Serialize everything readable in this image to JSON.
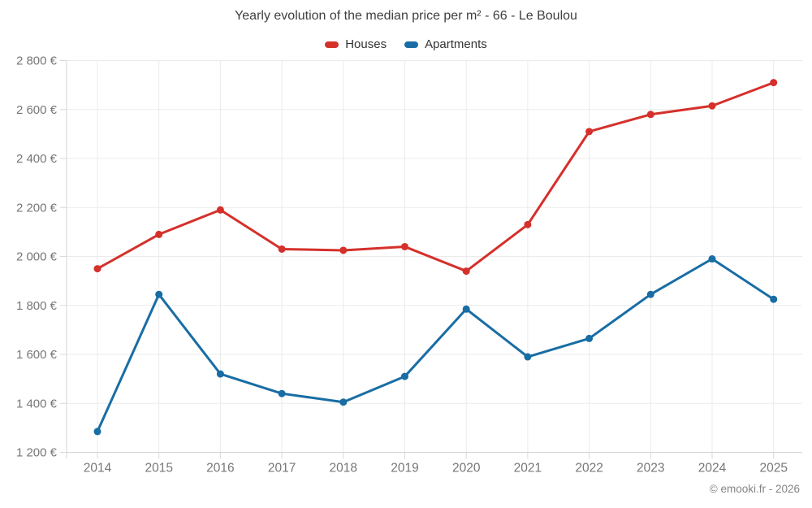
{
  "chart_data": {
    "type": "line",
    "title": "Yearly evolution of the median price per m² - 66 - Le Boulou",
    "categories": [
      "2014",
      "2015",
      "2016",
      "2017",
      "2018",
      "2019",
      "2020",
      "2021",
      "2022",
      "2023",
      "2024",
      "2025"
    ],
    "series": [
      {
        "name": "Houses",
        "color": "#d5302b",
        "values": [
          1950,
          2090,
          2190,
          2030,
          2025,
          2040,
          1940,
          2130,
          2510,
          2580,
          2615,
          2710
        ]
      },
      {
        "name": "Apartments",
        "color": "#186da4",
        "values": [
          1285,
          1845,
          1520,
          1440,
          1405,
          1510,
          1785,
          1590,
          1665,
          1845,
          1990,
          1825
        ]
      }
    ],
    "ylim": [
      1200,
      2800
    ],
    "ytick_step": 200,
    "y_unit": "€",
    "grid": true,
    "legend_position": "top"
  },
  "footer": {
    "text": "© emooki.fr - 2026"
  },
  "colors": {
    "background": "#ffffff",
    "gridline": "#ebebeb",
    "axis_line": "#d4d4d4",
    "tick_mark": "#d9d9d9",
    "axis_label": "#777777",
    "title_text": "#3f3f3f",
    "legend_text": "#333333",
    "footer_text": "#858585"
  }
}
